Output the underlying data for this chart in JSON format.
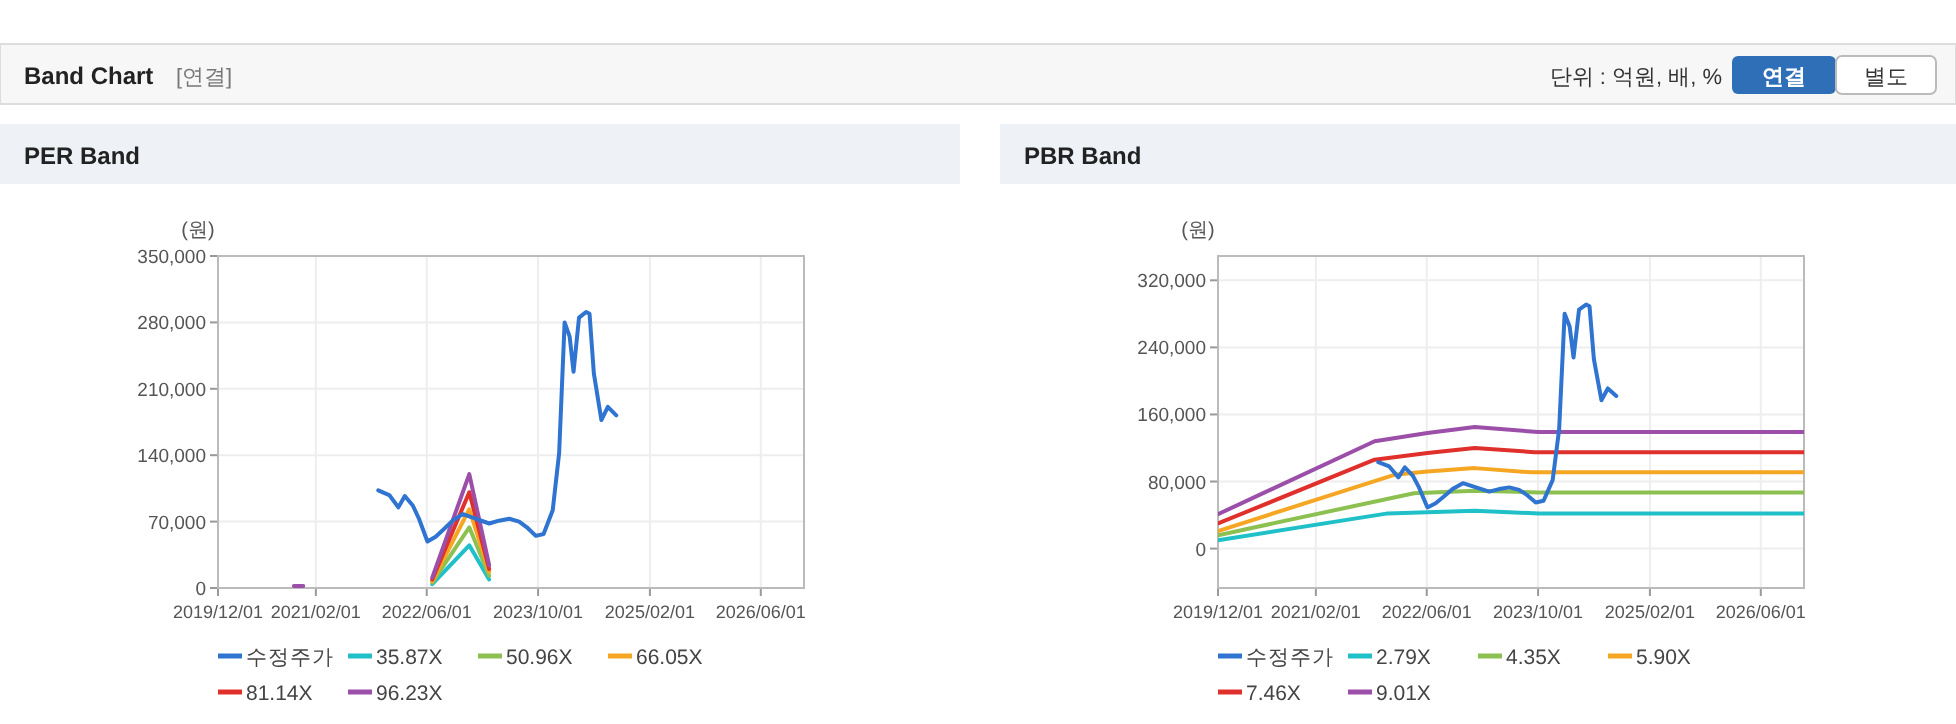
{
  "chart_data": [
    {
      "type": "line",
      "title": "PER Band",
      "ylabel": "(원)",
      "annotations": [
        "Band Chart",
        "[연결]",
        "단위 : 억원, 배, %",
        "연결",
        "별도"
      ],
      "xlim": [
        "2019-12-01",
        "2026-12-07"
      ],
      "ylim": [
        0,
        350000
      ],
      "xticks": [
        {
          "value": "2019-12-01",
          "label": "2019/12/01"
        },
        {
          "value": "2021-02-01",
          "label": "2021/02/01"
        },
        {
          "value": "2022-06-01",
          "label": "2022/06/01"
        },
        {
          "value": "2023-10-01",
          "label": "2023/10/01"
        },
        {
          "value": "2025-02-01",
          "label": "2025/02/01"
        },
        {
          "value": "2026-06-01",
          "label": "2026/06/01"
        }
      ],
      "yticks": [
        0,
        {
          "value": 70000,
          "label": "70,000"
        },
        {
          "value": 140000,
          "label": "140,000"
        },
        {
          "value": 210000,
          "label": "210,000"
        },
        {
          "value": 280000,
          "label": "280,000"
        },
        {
          "value": 350000,
          "label": "350,000"
        }
      ],
      "grid": true,
      "legend": "bottom",
      "marker": "none",
      "line_style": "solid",
      "series": [
        {
          "name": "수정주가",
          "color": "#2f74d0",
          "x": [
            "2021-11-01",
            "2021-12-19",
            "2022-01-28",
            "2022-02-25",
            "2022-04-01",
            "2022-04-28",
            "2022-06-04",
            "2022-07-10",
            "2022-08-19",
            "2022-09-22",
            "2022-11-06",
            "2023-03-01",
            "2023-04-13",
            "2023-05-28",
            "2023-07-10",
            "2023-08-13",
            "2023-09-21",
            "2023-10-25",
            "2023-12-04",
            "2024-01-01",
            "2024-01-25",
            "2024-02-16",
            "2024-03-04",
            "2024-03-28",
            "2024-04-28",
            "2024-05-13",
            "2024-06-01",
            "2024-07-04",
            "2024-08-01",
            "2024-09-07"
          ],
          "values": [
            103000,
            98000,
            85000,
            97000,
            87000,
            73000,
            49000,
            54000,
            63000,
            71000,
            78000,
            68000,
            71000,
            73000,
            70000,
            64000,
            55000,
            57000,
            82000,
            142000,
            280000,
            265000,
            228000,
            285000,
            291000,
            289000,
            226000,
            177000,
            191000,
            182000
          ]
        },
        {
          "name": "35.87X",
          "color": "#20c0c8",
          "x": [
            "2022-06-25",
            "2022-12-04",
            "2023-03-01"
          ],
          "values": [
            4000,
            45000,
            9000
          ]
        },
        {
          "name": "50.96X",
          "color": "#8cc152",
          "x": [
            "2022-06-25",
            "2022-12-04",
            "2023-03-01"
          ],
          "values": [
            6000,
            64000,
            13000
          ]
        },
        {
          "name": "66.05X",
          "color": "#f5a623",
          "x": [
            "2022-06-25",
            "2022-12-04",
            "2023-03-01"
          ],
          "values": [
            7000,
            83000,
            17000
          ]
        },
        {
          "name": "81.14X",
          "color": "#e0302c",
          "x": [
            "2022-06-25",
            "2022-12-04",
            "2023-03-01"
          ],
          "values": [
            9000,
            101000,
            20000
          ]
        },
        {
          "name": "96.23X",
          "color": "#9b4fa8",
          "x": [
            "2020-10-28",
            "2020-12-08",
            "2021-06-01",
            "2022-06-25",
            "2022-12-04",
            "2023-03-01"
          ],
          "values": [
            2000,
            2000,
            null,
            11000,
            120000,
            24000
          ]
        }
      ]
    },
    {
      "type": "line",
      "title": "PBR Band",
      "ylabel": "(원)",
      "xlim": [
        "2019-12-01",
        "2026-12-07"
      ],
      "ylim": [
        -47000,
        349000
      ],
      "xticks": [
        {
          "value": "2019-12-01",
          "label": "2019/12/01"
        },
        {
          "value": "2021-02-01",
          "label": "2021/02/01"
        },
        {
          "value": "2022-06-01",
          "label": "2022/06/01"
        },
        {
          "value": "2023-10-01",
          "label": "2023/10/01"
        },
        {
          "value": "2025-02-01",
          "label": "2025/02/01"
        },
        {
          "value": "2026-06-01",
          "label": "2026/06/01"
        }
      ],
      "yticks": [
        0,
        {
          "value": 80000,
          "label": "80,000"
        },
        {
          "value": 160000,
          "label": "160,000"
        },
        {
          "value": 240000,
          "label": "240,000"
        },
        {
          "value": 320000,
          "label": "320,000"
        }
      ],
      "grid": true,
      "legend": "bottom",
      "marker": "none",
      "line_style": "solid",
      "series": [
        {
          "name": "수정주가",
          "color": "#2f74d0",
          "x": [
            "2021-11-01",
            "2021-12-19",
            "2022-01-28",
            "2022-02-25",
            "2022-04-01",
            "2022-04-28",
            "2022-06-04",
            "2022-07-10",
            "2022-08-19",
            "2022-09-22",
            "2022-11-06",
            "2023-03-01",
            "2023-04-13",
            "2023-05-28",
            "2023-07-10",
            "2023-08-13",
            "2023-09-21",
            "2023-10-25",
            "2023-12-04",
            "2024-01-01",
            "2024-01-25",
            "2024-02-16",
            "2024-03-04",
            "2024-03-28",
            "2024-04-28",
            "2024-05-13",
            "2024-06-01",
            "2024-07-04",
            "2024-08-01",
            "2024-09-07"
          ],
          "values": [
            103000,
            98000,
            85000,
            97000,
            87000,
            73000,
            49000,
            54000,
            63000,
            71000,
            78000,
            68000,
            71000,
            73000,
            70000,
            64000,
            55000,
            57000,
            82000,
            142000,
            280000,
            265000,
            228000,
            285000,
            291000,
            289000,
            226000,
            177000,
            191000,
            182000
          ]
        },
        {
          "name": "2.79X",
          "color": "#20c0c8",
          "x": [
            "2019-12-01",
            "2021-12-13",
            "2022-12-28",
            "2023-10-01",
            "2026-12-07"
          ],
          "values": [
            10000,
            42000,
            45000,
            42000,
            42000
          ]
        },
        {
          "name": "4.35X",
          "color": "#8cc152",
          "x": [
            "2019-12-01",
            "2022-04-06",
            "2022-12-28",
            "2023-10-01",
            "2026-12-07"
          ],
          "values": [
            16000,
            66000,
            69000,
            67000,
            67000
          ]
        },
        {
          "name": "5.90X",
          "color": "#f5a623",
          "x": [
            "2019-12-01",
            "2022-01-10",
            "2022-06-04",
            "2022-12-28",
            "2023-09-01",
            "2026-12-07"
          ],
          "values": [
            21000,
            88000,
            92000,
            96000,
            91000,
            91000
          ]
        },
        {
          "name": "7.46X",
          "color": "#e0302c",
          "x": [
            "2019-12-01",
            "2021-10-16",
            "2022-06-04",
            "2022-12-28",
            "2023-09-15",
            "2026-12-07"
          ],
          "values": [
            30000,
            106000,
            114000,
            120000,
            115000,
            115000
          ]
        },
        {
          "name": "9.01X",
          "color": "#9b4fa8",
          "x": [
            "2019-12-01",
            "2021-10-16",
            "2022-06-04",
            "2022-12-28",
            "2023-10-01",
            "2026-12-07"
          ],
          "values": [
            41000,
            128000,
            138000,
            145000,
            139000,
            139000
          ]
        }
      ]
    }
  ]
}
